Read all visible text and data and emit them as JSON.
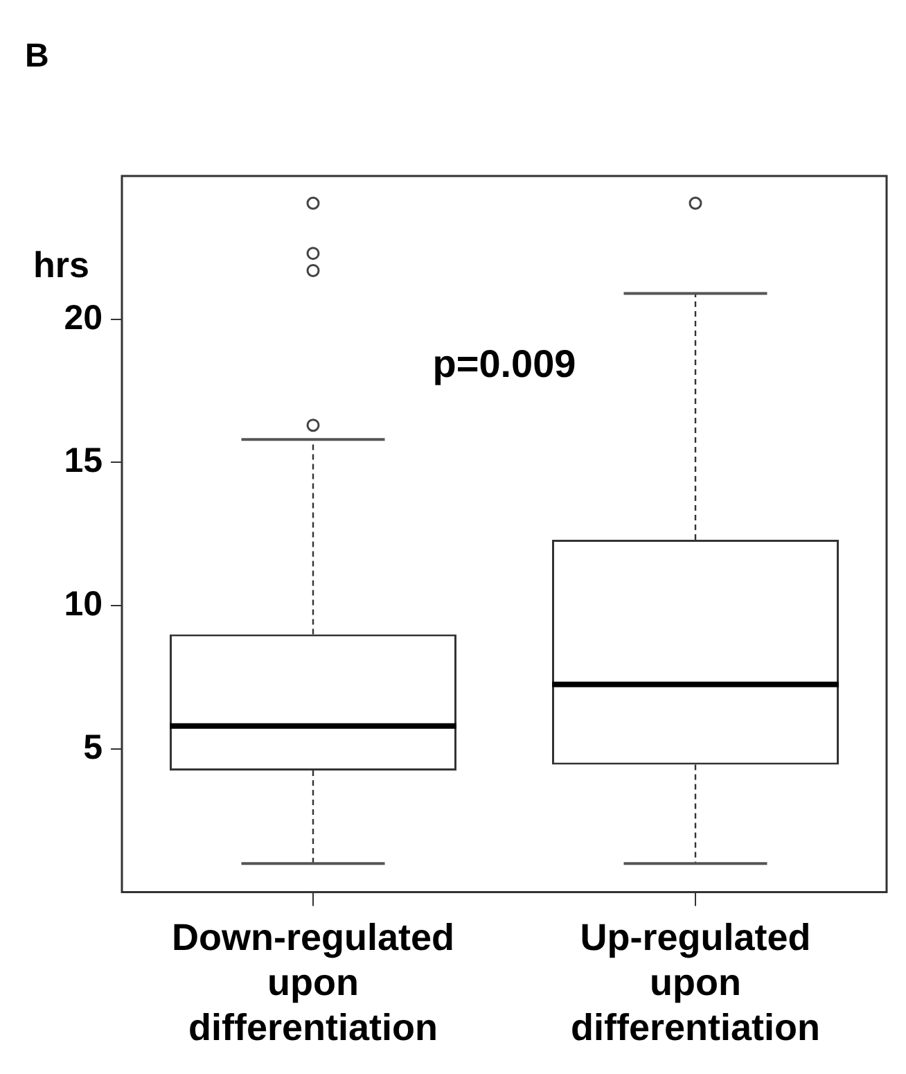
{
  "chart_data": {
    "type": "box",
    "title": "B",
    "ylabel": "hrs",
    "categories": [
      "Down-regulated upon differentiation",
      "Up-regulated upon differentiation"
    ],
    "boxes": [
      {
        "low": 1.0,
        "q1": 4.25,
        "median": 5.8,
        "q3": 9.0,
        "high": 15.8,
        "outliers": [
          16.3,
          21.7,
          22.3,
          24.05
        ]
      },
      {
        "low": 1.0,
        "q1": 4.45,
        "median": 7.25,
        "q3": 12.3,
        "high": 20.9,
        "outliers": [
          24.05
        ]
      }
    ],
    "ylim": [
      0,
      25
    ],
    "yticks": [
      5,
      10,
      15,
      20
    ],
    "grid": false,
    "annotations": [
      "p=0.009"
    ]
  }
}
